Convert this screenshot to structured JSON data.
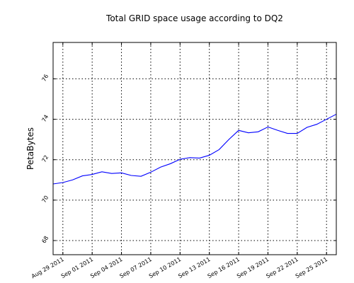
{
  "chart_data": {
    "type": "line",
    "title": "Total GRID space usage according to DQ2",
    "xlabel": "",
    "ylabel": "PetaBytes",
    "xlim": [
      "2011-08-28",
      "2011-09-26"
    ],
    "ylim": [
      67.3,
      77.8
    ],
    "grid": true,
    "x_ticks": [
      {
        "date": "2011-08-29",
        "label": "Aug 29 2011"
      },
      {
        "date": "2011-09-01",
        "label": "Sep 01 2011"
      },
      {
        "date": "2011-09-04",
        "label": "Sep 04 2011"
      },
      {
        "date": "2011-09-07",
        "label": "Sep 07 2011"
      },
      {
        "date": "2011-09-10",
        "label": "Sep 10 2011"
      },
      {
        "date": "2011-09-13",
        "label": "Sep 13 2011"
      },
      {
        "date": "2011-09-16",
        "label": "Sep 16 2011"
      },
      {
        "date": "2011-09-19",
        "label": "Sep 19 2011"
      },
      {
        "date": "2011-09-22",
        "label": "Sep 22 2011"
      },
      {
        "date": "2011-09-25",
        "label": "Sep 25 2011"
      }
    ],
    "y_ticks": [
      {
        "value": 68,
        "label": "68"
      },
      {
        "value": 70,
        "label": "70"
      },
      {
        "value": 72,
        "label": "72"
      },
      {
        "value": 74,
        "label": "74"
      },
      {
        "value": 76,
        "label": "76"
      }
    ],
    "series": [
      {
        "color": "#0000ff",
        "x": [
          "2011-08-28",
          "2011-08-29",
          "2011-08-30",
          "2011-08-31",
          "2011-09-01",
          "2011-09-02",
          "2011-09-03",
          "2011-09-04",
          "2011-09-05",
          "2011-09-06",
          "2011-09-07",
          "2011-09-08",
          "2011-09-09",
          "2011-09-10",
          "2011-09-11",
          "2011-09-12",
          "2011-09-13",
          "2011-09-14",
          "2011-09-15",
          "2011-09-16",
          "2011-09-17",
          "2011-09-18",
          "2011-09-19",
          "2011-09-20",
          "2011-09-21",
          "2011-09-22",
          "2011-09-23",
          "2011-09-24",
          "2011-09-25",
          "2011-09-26"
        ],
        "values": [
          70.8,
          70.87,
          71.0,
          71.2,
          71.27,
          71.4,
          71.32,
          71.35,
          71.22,
          71.18,
          71.38,
          71.63,
          71.8,
          72.02,
          72.1,
          72.08,
          72.22,
          72.5,
          73.0,
          73.45,
          73.33,
          73.38,
          73.62,
          73.45,
          73.3,
          73.3,
          73.6,
          73.75,
          74.0,
          74.25
        ]
      }
    ]
  }
}
